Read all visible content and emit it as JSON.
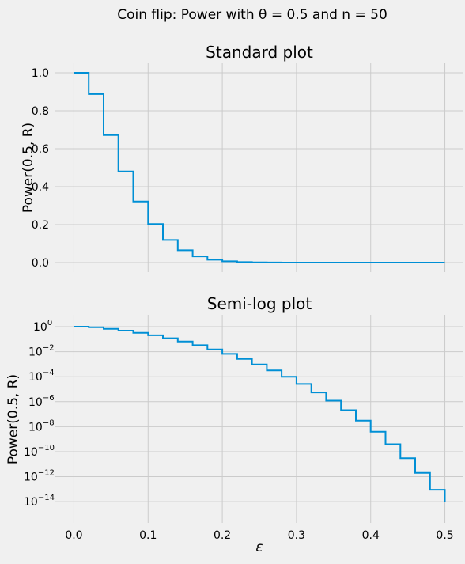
{
  "figure": {
    "suptitle": "Coin flip: Power with θ = 0.5 and n = 50"
  },
  "chart_data": [
    {
      "type": "line",
      "drawstyle": "steps-post",
      "title": "Standard plot",
      "xlabel": "",
      "ylabel": "Power(0.5, R)",
      "yscale": "linear",
      "xlim": [
        -0.025,
        0.525
      ],
      "ylim": [
        -0.05,
        1.05
      ],
      "xticks": [
        0.0,
        0.1,
        0.2,
        0.3,
        0.4,
        0.5
      ],
      "xtick_labels": [
        "0.0",
        "0.1",
        "0.2",
        "0.3",
        "0.4",
        "0.5"
      ],
      "show_xtick_labels": false,
      "yticks": [
        0.0,
        0.2,
        0.4,
        0.6,
        0.8,
        1.0
      ],
      "ytick_labels": [
        "0.0",
        "0.2",
        "0.4",
        "0.6",
        "0.8",
        "1.0"
      ],
      "grid": true,
      "color": "#008fd5",
      "x": [
        0.0,
        0.02,
        0.04,
        0.06,
        0.08,
        0.1,
        0.12,
        0.14,
        0.16,
        0.18,
        0.2,
        0.22,
        0.24,
        0.26,
        0.28,
        0.3,
        0.32,
        0.34,
        0.36,
        0.38,
        0.4,
        0.42,
        0.44,
        0.46,
        0.48,
        0.5
      ],
      "y": [
        1.0,
        0.888,
        0.672,
        0.48,
        0.322,
        0.203,
        0.119,
        0.065,
        0.033,
        0.015,
        0.0066,
        0.0026,
        0.00095,
        0.00032,
        0.0001,
        2.6e-05,
        5.5e-06,
        1.2e-06,
        2.1e-07,
        3e-08,
        4e-09,
        4e-10,
        3e-11,
        2e-12,
        9e-14,
        1e-14
      ]
    },
    {
      "type": "line",
      "drawstyle": "steps-post",
      "title": "Semi-log plot",
      "xlabel": "ε",
      "ylabel": "Power(0.5, R)",
      "yscale": "log",
      "xlim": [
        -0.025,
        0.525
      ],
      "ylim_log10": [
        -15.7,
        0.95
      ],
      "xticks": [
        0.0,
        0.1,
        0.2,
        0.3,
        0.4,
        0.5
      ],
      "xtick_labels": [
        "0.0",
        "0.1",
        "0.2",
        "0.3",
        "0.4",
        "0.5"
      ],
      "show_xtick_labels": true,
      "ytick_exponents": [
        0,
        -2,
        -4,
        -6,
        -8,
        -10,
        -12,
        -14
      ],
      "ytick_base": "10",
      "ytick_exp_labels": [
        "0",
        "−2",
        "−4",
        "−6",
        "−8",
        "−10",
        "−12",
        "−14"
      ],
      "grid": true,
      "color": "#008fd5",
      "x": [
        0.0,
        0.02,
        0.04,
        0.06,
        0.08,
        0.1,
        0.12,
        0.14,
        0.16,
        0.18,
        0.2,
        0.22,
        0.24,
        0.26,
        0.28,
        0.3,
        0.32,
        0.34,
        0.36,
        0.38,
        0.4,
        0.42,
        0.44,
        0.46,
        0.48,
        0.5
      ],
      "y": [
        1.0,
        0.888,
        0.672,
        0.48,
        0.322,
        0.203,
        0.119,
        0.065,
        0.033,
        0.015,
        0.0066,
        0.0026,
        0.00095,
        0.00032,
        0.0001,
        2.6e-05,
        5.5e-06,
        1.2e-06,
        2.1e-07,
        3e-08,
        4e-09,
        4e-10,
        3e-11,
        2e-12,
        9e-14,
        1e-14
      ]
    }
  ]
}
